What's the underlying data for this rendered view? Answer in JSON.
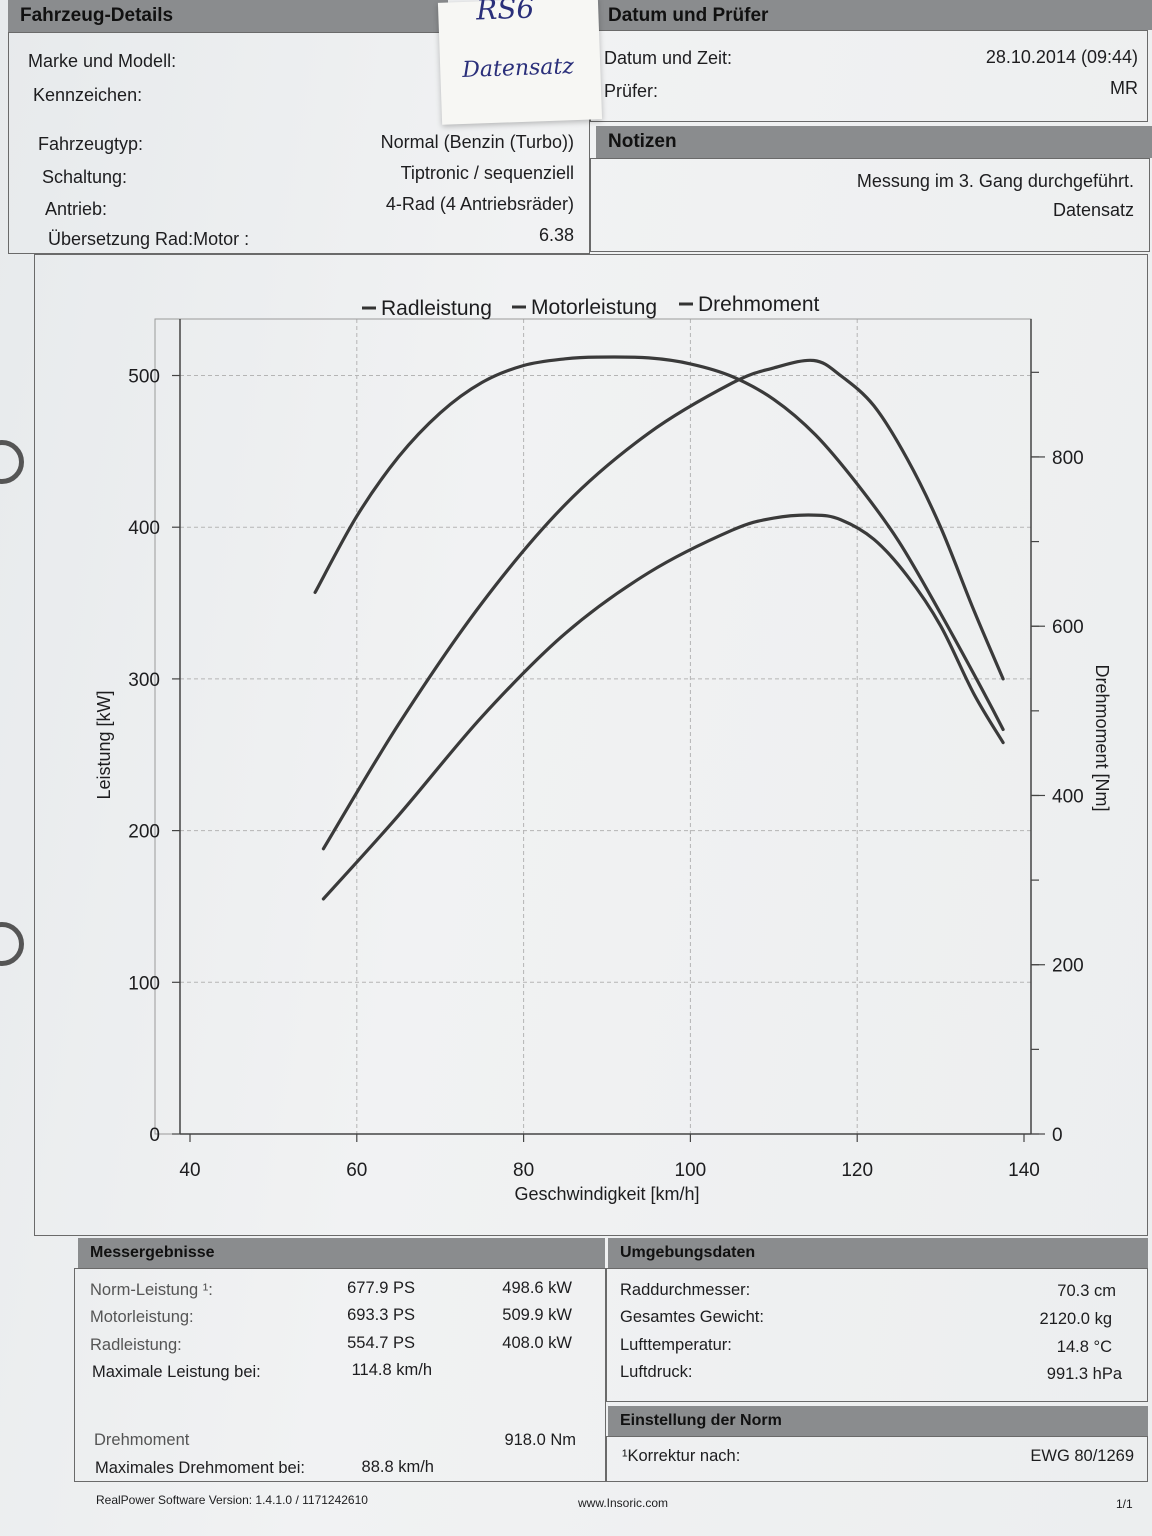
{
  "vehicle": {
    "header": "Fahrzeug-Details",
    "rows_top": [
      {
        "label": "Marke und Modell:",
        "value": ""
      },
      {
        "label": "Kennzeichen:",
        "value": ""
      }
    ],
    "rows": [
      {
        "label": "Fahrzeugtyp:",
        "value": "Normal (Benzin (Turbo))"
      },
      {
        "label": "Schaltung:",
        "value": "Tiptronic / sequenziell"
      },
      {
        "label": "Antrieb:",
        "value": "4-Rad (4 Antriebsräder)"
      },
      {
        "label": "Übersetzung Rad:Motor :",
        "value": "6.38"
      }
    ]
  },
  "sticky_note": {
    "line1": "RS6",
    "line2": "Datensatz"
  },
  "inspection": {
    "header": "Datum und Prüfer",
    "date_label": "Datum und Zeit:",
    "date_value": "28.10.2014 (09:44)",
    "tester_label": "Prüfer:",
    "tester_value": "MR"
  },
  "notes": {
    "header": "Notizen",
    "line1": "Messung im 3. Gang durchgeführt.",
    "line2": "Datensatz"
  },
  "chart_data": {
    "type": "line",
    "legend": [
      "Radleistung",
      "Motorleistung",
      "Drehmoment"
    ],
    "xlabel": "Geschwindigkeit [km/h]",
    "ylabel": "Leistung [kW]",
    "y2label": "Drehmoment [Nm]",
    "xlim": [
      40,
      140
    ],
    "ylim": [
      0,
      530
    ],
    "y2lim": [
      0,
      950
    ],
    "xticks": [
      "40",
      "60",
      "80",
      "100",
      "120",
      "140"
    ],
    "yticks": [
      "0",
      "100",
      "200",
      "300",
      "400",
      "500"
    ],
    "y2ticks": [
      "0",
      "200",
      "400",
      "600",
      "800"
    ],
    "series": [
      {
        "name": "Radleistung",
        "axis": "left",
        "x": [
          56,
          65,
          75,
          85,
          95,
          105,
          110,
          114.8,
          118,
          122,
          126,
          130,
          134,
          137.5
        ],
        "y": [
          155,
          210,
          275,
          330,
          370,
          398,
          406,
          408,
          405,
          392,
          368,
          335,
          290,
          258
        ]
      },
      {
        "name": "Motorleistung",
        "axis": "left",
        "x": [
          56,
          65,
          75,
          85,
          95,
          105,
          110,
          114.8,
          118,
          122,
          126,
          130,
          134,
          137.5
        ],
        "y": [
          188,
          270,
          350,
          415,
          462,
          495,
          505,
          509.9,
          500,
          480,
          445,
          400,
          345,
          300
        ]
      },
      {
        "name": "Drehmoment",
        "axis": "right",
        "x": [
          55,
          60,
          65,
          70,
          75,
          80,
          85,
          88.8,
          95,
          100,
          105,
          110,
          115,
          120,
          125,
          130,
          135,
          137.5
        ],
        "y": [
          640,
          730,
          800,
          852,
          888,
          908,
          916,
          918,
          917,
          910,
          895,
          868,
          826,
          768,
          700,
          615,
          525,
          478
        ]
      }
    ]
  },
  "results": {
    "header": "Messergebnisse",
    "rows": [
      {
        "label": "Norm-Leistung ¹:",
        "ps": "677.9 PS",
        "kw": "498.6 kW"
      },
      {
        "label": "Motorleistung:",
        "ps": "693.3 PS",
        "kw": "509.9 kW"
      },
      {
        "label": "Radleistung:",
        "ps": "554.7 PS",
        "kw": "408.0 kW"
      },
      {
        "label": "Maximale Leistung bei:",
        "ps": "114.8 km/h",
        "kw": ""
      }
    ],
    "torque_label": "Drehmoment",
    "torque_value": "918.0 Nm",
    "max_torque_label": "Maximales Drehmoment bei:",
    "max_torque_value": "88.8 km/h"
  },
  "environment": {
    "header": "Umgebungsdaten",
    "rows": [
      {
        "label": "Raddurchmesser:",
        "value": "70.3 cm"
      },
      {
        "label": "Gesamtes Gewicht:",
        "value": "2120.0 kg"
      },
      {
        "label": "Lufttemperatur:",
        "value": "14.8 °C"
      },
      {
        "label": "Luftdruck:",
        "value": "991.3 hPa"
      }
    ]
  },
  "norm": {
    "header": "Einstellung der Norm",
    "label": "¹Korrektur nach:",
    "value": "EWG 80/1269"
  },
  "footer": {
    "software": "RealPower Software Version: 1.4.1.0 / 1171242610",
    "url": "www.Insoric.com",
    "page": "1/1"
  }
}
